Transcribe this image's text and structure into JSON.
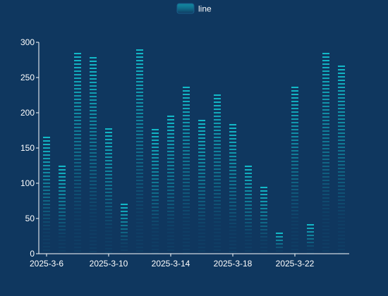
{
  "chart_data": {
    "type": "bar",
    "legend": [
      "line"
    ],
    "series": [
      {
        "name": "line",
        "x": [
          "2025-3-6",
          "2025-3-7",
          "2025-3-8",
          "2025-3-9",
          "2025-3-10",
          "2025-3-11",
          "2025-3-12",
          "2025-3-13",
          "2025-3-14",
          "2025-3-15",
          "2025-3-16",
          "2025-3-17",
          "2025-3-18",
          "2025-3-19",
          "2025-3-20",
          "2025-3-21",
          "2025-3-22",
          "2025-3-23",
          "2025-3-24",
          "2025-3-25"
        ],
        "values": [
          166,
          125,
          285,
          279,
          178,
          71,
          290,
          177,
          196,
          237,
          190,
          226,
          184,
          125,
          95,
          30,
          237,
          42,
          285,
          267
        ]
      }
    ],
    "x_tick_labels": [
      "2025-3-6",
      "2025-3-10",
      "2025-3-14",
      "2025-3-18",
      "2025-3-22"
    ],
    "y_ticks": [
      0,
      50,
      100,
      150,
      200,
      250,
      300
    ],
    "ylim": [
      0,
      300
    ],
    "legend_position": "top-center",
    "grid": false,
    "colors": {
      "background": "#0f375f",
      "bar_top": "#14c8d4",
      "bar_bottom": "#0f375f",
      "axis": "#ffffff"
    }
  }
}
